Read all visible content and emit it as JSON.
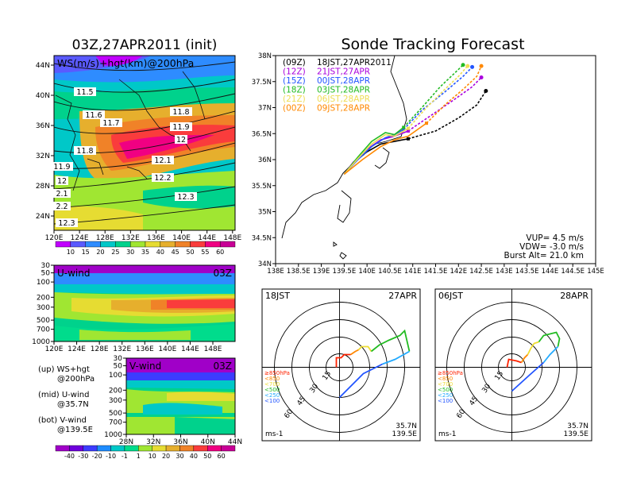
{
  "titles": {
    "left": "03Z,27APR2011 (init)",
    "right": "Sonde Tracking Forecast"
  },
  "colors": {
    "bg": "#ffffff",
    "axis": "#000000",
    "track_00z": "#000000",
    "track_12z": "#aa00dd",
    "track_15z": "#2255ff",
    "track_18z": "#22bb22",
    "track_21z": "#eedd55",
    "track_00z2": "#ff8800"
  },
  "ws_map": {
    "label": "WS(m/s)+hgt(km)@200hPa",
    "lon_ticks": [
      "120E",
      "124E",
      "128E",
      "132E",
      "136E",
      "140E",
      "144E",
      "148E"
    ],
    "lat_ticks": [
      "24N",
      "28N",
      "32N",
      "36N",
      "40N",
      "44N"
    ],
    "contour_labels": [
      "11.5",
      "11.6",
      "11.7",
      "11.8",
      "11.9",
      "12",
      "12.1",
      "12.2",
      "12.3",
      "11.8",
      "11.9",
      "12",
      "2.1",
      "2.2",
      "12.3"
    ]
  },
  "ws_colorbar": {
    "labels": [
      "10",
      "15",
      "20",
      "25",
      "30",
      "35",
      "40",
      "45",
      "50",
      "55",
      "60"
    ],
    "colors": [
      "#c100ff",
      "#5a5aff",
      "#2e8cff",
      "#00c8c8",
      "#00d28c",
      "#a0e632",
      "#e6dc32",
      "#e6af2d",
      "#f08228",
      "#fa3c3c",
      "#f00082",
      "#c80096"
    ]
  },
  "u_panel": {
    "label": "U-wind",
    "time": "03Z",
    "y_ticks": [
      "30",
      "50",
      "100",
      "200",
      "300",
      "500",
      "700",
      "1000"
    ],
    "x_ticks": [
      "120E",
      "124E",
      "128E",
      "132E",
      "136E",
      "140E",
      "144E",
      "148E"
    ]
  },
  "v_panel": {
    "label": "V-wind",
    "time": "03Z",
    "y_ticks": [
      "30",
      "50",
      "100",
      "200",
      "300",
      "500",
      "700",
      "1000"
    ],
    "x_ticks": [
      "28N",
      "32N",
      "36N",
      "40N",
      "44N"
    ]
  },
  "legend_text": {
    "up": "(up) WS+hgt",
    "up2": "@200hPa",
    "mid": "(mid) U-wind",
    "mid2": "@35.7N",
    "bot": "(bot) V-wind",
    "bot2": "@139.5E"
  },
  "bottom_colorbar": {
    "labels": [
      "-40",
      "-30",
      "-20",
      "-10",
      "-1",
      "1",
      "10",
      "20",
      "30",
      "40",
      "50",
      "60"
    ],
    "colors": [
      "#a000c8",
      "#6e00dc",
      "#3c3cff",
      "#1e8cff",
      "#00c8c8",
      "#00dc8c",
      "#a0e632",
      "#e6dc32",
      "#e6af2d",
      "#f08228",
      "#fa3c3c",
      "#f00082",
      "#c80096"
    ]
  },
  "track_legend": [
    {
      "run": "(09Z)",
      "valid": "18JST,27APR2011",
      "color": "#000000"
    },
    {
      "run": "(12Z)",
      "valid": "21JST,27APR",
      "color": "#aa00dd"
    },
    {
      "run": "(15Z)",
      "valid": "00JST,28APR",
      "color": "#2255ff"
    },
    {
      "run": "(18Z)",
      "valid": "03JST,28APR",
      "color": "#22bb22"
    },
    {
      "run": "(21Z)",
      "valid": "06JST,28APR",
      "color": "#eedd55"
    },
    {
      "run": "(00Z)",
      "valid": "09JST,28APR",
      "color": "#ff8800"
    }
  ],
  "params": {
    "vup": "VUP= 4.5 m/s",
    "vdw": "VDW= -3.0 m/s",
    "burst": "Burst Alt= 21.0 km"
  },
  "chart_data": {
    "type": "line",
    "title": "Sonde Tracking Forecast",
    "x_ticks": [
      "138E",
      "138.5E",
      "139E",
      "139.5E",
      "140E",
      "140.5E",
      "141E",
      "141.5E",
      "142E",
      "142.5E",
      "143E",
      "143.5E",
      "144E",
      "144.5E",
      "145E"
    ],
    "y_ticks": [
      "34N",
      "34.5N",
      "35N",
      "35.5N",
      "36N",
      "36.5N",
      "37N",
      "37.5N",
      "38N"
    ],
    "xlim": [
      138,
      145
    ],
    "ylim": [
      34,
      38
    ],
    "series": [
      {
        "name": "(09Z) 18JST,27APR2011",
        "color": "#000000",
        "x": [
          139.5,
          139.7,
          140.0,
          140.3,
          140.6,
          140.9,
          141.5,
          142.0,
          142.4,
          142.6
        ],
        "y": [
          35.72,
          35.95,
          36.15,
          36.3,
          36.35,
          36.4,
          36.55,
          36.8,
          37.05,
          37.32
        ]
      },
      {
        "name": "(12Z) 21JST,27APR",
        "color": "#aa00dd",
        "x": [
          139.5,
          139.7,
          140.0,
          140.3,
          140.6,
          140.9,
          141.4,
          141.9,
          142.3,
          142.5
        ],
        "y": [
          35.72,
          35.95,
          36.2,
          36.38,
          36.45,
          36.55,
          36.85,
          37.15,
          37.4,
          37.58
        ]
      },
      {
        "name": "(15Z) 00JST,28APR",
        "color": "#2255ff",
        "x": [
          139.5,
          139.8,
          140.1,
          140.4,
          140.6,
          140.8,
          141.2,
          141.7,
          142.1,
          142.3
        ],
        "y": [
          35.72,
          36.0,
          36.25,
          36.42,
          36.48,
          36.58,
          36.95,
          37.3,
          37.6,
          37.78
        ]
      },
      {
        "name": "(18Z) 03JST,28APR",
        "color": "#22bb22",
        "x": [
          139.5,
          139.8,
          140.1,
          140.4,
          140.6,
          140.8,
          141.2,
          141.6,
          141.9,
          142.1
        ],
        "y": [
          35.72,
          36.05,
          36.35,
          36.52,
          36.48,
          36.62,
          37.0,
          37.4,
          37.65,
          37.82
        ]
      },
      {
        "name": "(21Z) 06JST,28APR",
        "color": "#eedd55",
        "x": [
          139.5,
          139.8,
          140.1,
          140.4,
          140.6,
          140.9,
          141.3,
          141.7,
          142.0,
          142.2
        ],
        "y": [
          35.72,
          36.02,
          36.3,
          36.48,
          36.45,
          36.6,
          37.0,
          37.35,
          37.6,
          37.8
        ]
      },
      {
        "name": "(00Z) 09JST,28APR",
        "color": "#ff8800",
        "x": [
          139.5,
          139.9,
          140.3,
          140.6,
          140.9,
          141.3,
          141.7,
          142.1,
          142.4,
          142.5
        ],
        "y": [
          35.72,
          36.0,
          36.25,
          36.38,
          36.45,
          36.7,
          37.05,
          37.35,
          37.6,
          37.8
        ]
      }
    ]
  },
  "hodographs": [
    {
      "time": "18JST",
      "date": "27APR",
      "lat": "35.7N",
      "lon": "139.5E",
      "units": "ms-1",
      "ring_labels": [
        "15",
        "30",
        "45",
        "60"
      ],
      "levels": [
        {
          "label": "≥850hPa",
          "color": "#ff2200"
        },
        {
          "label": "<850",
          "color": "#ff8800"
        },
        {
          "label": "<700",
          "color": "#eedd33"
        },
        {
          "label": "<500",
          "color": "#22bb22"
        },
        {
          "label": "<250",
          "color": "#22aaff"
        },
        {
          "label": "<100",
          "color": "#2255ff"
        }
      ]
    },
    {
      "time": "06JST",
      "date": "28APR",
      "lat": "35.7N",
      "lon": "139.5E",
      "units": "ms-1",
      "ring_labels": [
        "15",
        "30",
        "45",
        "60"
      ],
      "levels": [
        {
          "label": "≥850hPa",
          "color": "#ff2200"
        },
        {
          "label": "<850",
          "color": "#ff8800"
        },
        {
          "label": "<700",
          "color": "#eedd33"
        },
        {
          "label": "<500",
          "color": "#22bb22"
        },
        {
          "label": "<250",
          "color": "#22aaff"
        },
        {
          "label": "<100",
          "color": "#2255ff"
        }
      ]
    }
  ]
}
